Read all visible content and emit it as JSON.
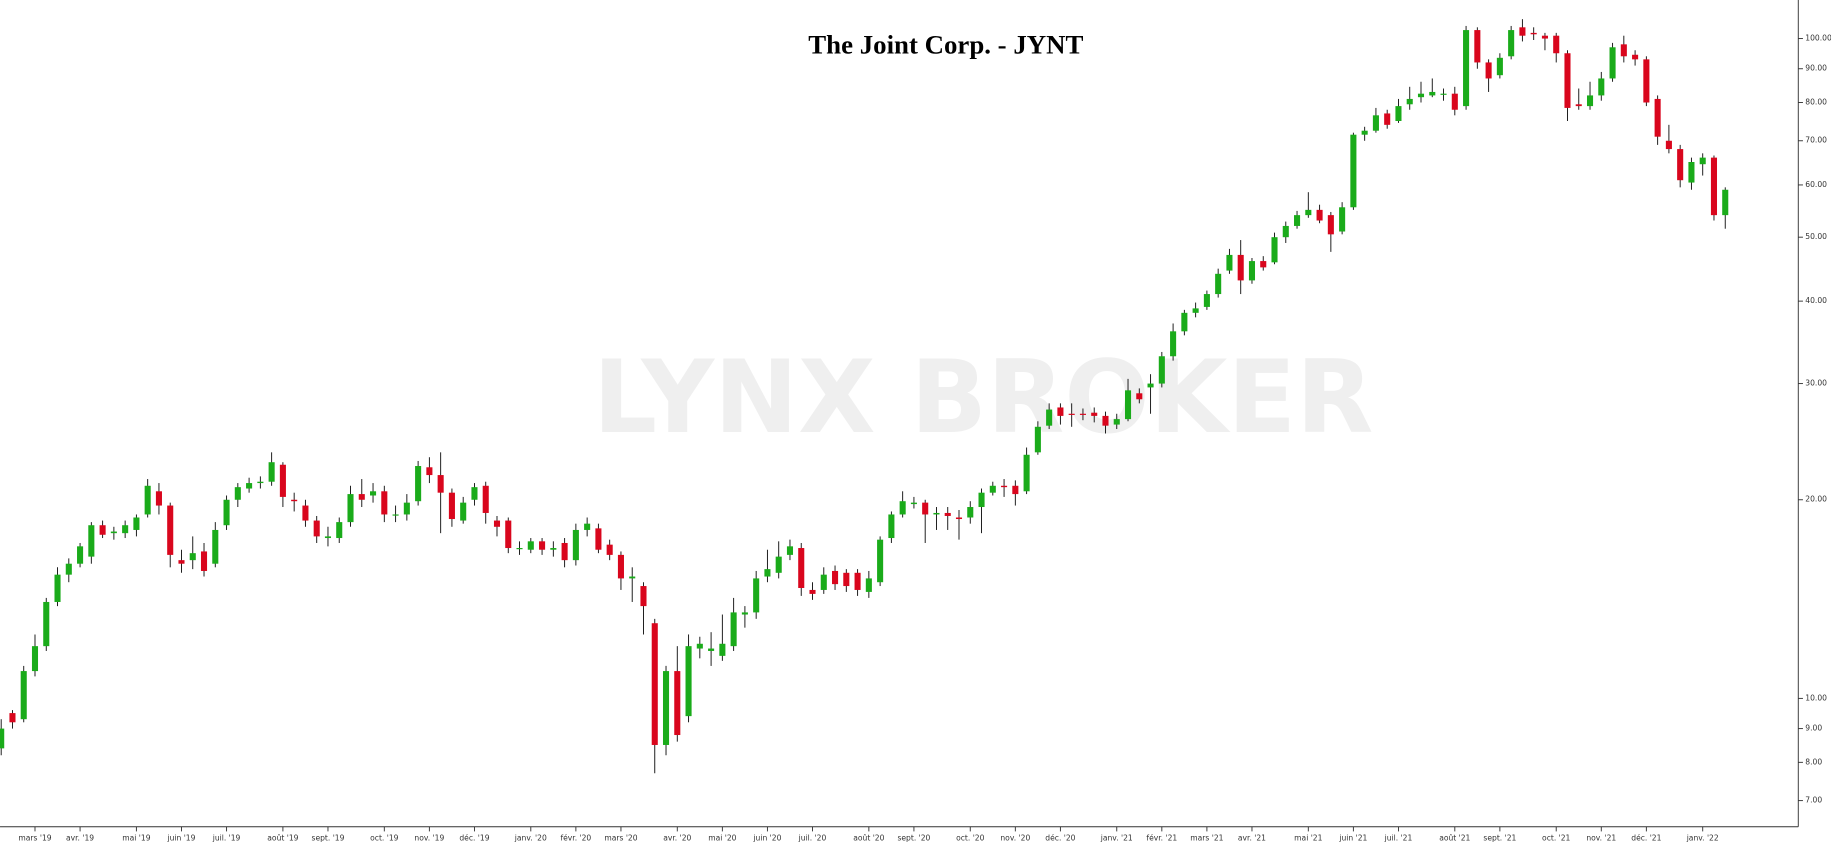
{
  "chart_data": {
    "type": "candlestick",
    "title": "The Joint Corp. - JYNT",
    "watermark": "LYNX BROKER",
    "log_scale": true,
    "grid": false,
    "up_color": "#1aab1a",
    "down_color": "#d9061d",
    "ylim": [
      6.39,
      114.4
    ],
    "yticks": [
      {
        "value": 7,
        "label": "7.00"
      },
      {
        "value": 8,
        "label": "8.00"
      },
      {
        "value": 9,
        "label": "9.00"
      },
      {
        "value": 10,
        "label": "10.00"
      },
      {
        "value": 20,
        "label": "20.00"
      },
      {
        "value": 30,
        "label": "30.00"
      },
      {
        "value": 40,
        "label": "40.00"
      },
      {
        "value": 50,
        "label": "50.00"
      },
      {
        "value": 60,
        "label": "60.00"
      },
      {
        "value": 70,
        "label": "70.00"
      },
      {
        "value": 80,
        "label": "80.00"
      },
      {
        "value": 90,
        "label": "90.00"
      },
      {
        "value": 100,
        "label": "100.00"
      }
    ],
    "categories": [
      null,
      null,
      null,
      "mars '19",
      null,
      null,
      null,
      "avr. '19",
      null,
      null,
      null,
      null,
      "mai '19",
      null,
      null,
      null,
      "juin '19",
      null,
      null,
      null,
      "juil. '19",
      null,
      null,
      null,
      null,
      "août '19",
      null,
      null,
      null,
      "sept. '19",
      null,
      null,
      null,
      null,
      "oct. '19",
      null,
      null,
      null,
      "nov. '19",
      null,
      null,
      null,
      "déc. '19",
      null,
      null,
      null,
      null,
      "janv. '20",
      null,
      null,
      null,
      "févr. '20",
      null,
      null,
      null,
      "mars '20",
      null,
      null,
      null,
      null,
      "avr. '20",
      null,
      null,
      null,
      "mai '20",
      null,
      null,
      null,
      "juin '20",
      null,
      null,
      null,
      "juil. '20",
      null,
      null,
      null,
      null,
      "août '20",
      null,
      null,
      null,
      "sept. '20",
      null,
      null,
      null,
      null,
      "oct. '20",
      null,
      null,
      null,
      "nov. '20",
      null,
      null,
      null,
      "déc. '20",
      null,
      null,
      null,
      null,
      "janv. '21",
      null,
      null,
      null,
      "févr. '21",
      null,
      null,
      null,
      "mars '21",
      null,
      null,
      null,
      "avr. '21",
      null,
      null,
      null,
      null,
      "mai '21",
      null,
      null,
      null,
      "juin '21",
      null,
      null,
      null,
      "juil. '21",
      null,
      null,
      null,
      null,
      "août '21",
      null,
      null,
      null,
      "sept. '21",
      null,
      null,
      null,
      null,
      "oct. '21",
      null,
      null,
      null,
      "nov. '21",
      null,
      null,
      null,
      "déc. '21",
      null,
      null,
      null,
      null,
      "janv. '22",
      null,
      null
    ],
    "open": [
      8.4,
      9.5,
      9.3,
      11.0,
      12.0,
      14.0,
      15.4,
      16.0,
      16.4,
      18.3,
      17.8,
      17.8,
      18.0,
      19.0,
      20.6,
      19.6,
      16.2,
      16.2,
      16.7,
      16.0,
      18.3,
      20.0,
      20.8,
      21.2,
      21.3,
      22.6,
      20.0,
      19.6,
      18.6,
      17.5,
      17.5,
      18.5,
      20.4,
      20.3,
      20.6,
      19.0,
      19.0,
      19.9,
      22.4,
      21.8,
      20.5,
      18.6,
      20.0,
      21.0,
      18.6,
      18.6,
      16.9,
      16.8,
      17.3,
      16.8,
      17.2,
      16.2,
      18.0,
      18.1,
      17.1,
      16.5,
      15.2,
      14.8,
      13.0,
      8.5,
      11.0,
      9.4,
      11.9,
      11.8,
      11.6,
      12.0,
      13.4,
      13.5,
      15.3,
      15.5,
      16.5,
      16.9,
      14.6,
      14.6,
      15.6,
      15.5,
      15.5,
      14.5,
      15.0,
      17.5,
      19.0,
      19.7,
      19.8,
      19.0,
      19.1,
      18.8,
      18.8,
      19.5,
      20.5,
      21.0,
      21.0,
      20.6,
      23.6,
      25.9,
      27.6,
      27.0,
      27.0,
      27.1,
      26.8,
      26.0,
      26.5,
      29.0,
      29.6,
      30.0,
      33.0,
      36.0,
      38.4,
      39.2,
      41.0,
      44.5,
      47.0,
      43.0,
      46.0,
      45.8,
      50.0,
      52.0,
      54.0,
      55.0,
      54.0,
      51.0,
      55.5,
      71.5,
      72.5,
      77.0,
      75.0,
      79.5,
      81.5,
      82.0,
      82.5,
      82.5,
      79.0,
      103.0,
      92.0,
      88.0,
      94.0,
      104.0,
      102.0,
      101.0,
      101.0,
      95.0,
      79.5,
      79.0,
      82.0,
      87.0,
      98.0,
      94.5,
      93.0,
      81.0,
      70.0,
      68.0,
      60.5,
      64.5,
      66.0,
      54.0
    ],
    "high": [
      9.3,
      9.6,
      11.2,
      12.5,
      14.2,
      15.8,
      16.3,
      17.2,
      18.5,
      18.6,
      18.2,
      18.6,
      19.0,
      21.5,
      21.2,
      19.8,
      16.8,
      17.6,
      17.2,
      18.5,
      20.3,
      21.2,
      21.6,
      21.7,
      23.6,
      22.8,
      20.5,
      20.0,
      18.9,
      18.2,
      18.8,
      21.0,
      21.5,
      21.2,
      21.0,
      19.6,
      20.4,
      22.9,
      23.2,
      23.6,
      20.8,
      20.2,
      21.2,
      21.3,
      18.9,
      18.8,
      17.3,
      17.5,
      17.5,
      17.3,
      17.5,
      18.4,
      18.8,
      18.4,
      17.4,
      16.7,
      15.8,
      15.0,
      13.2,
      11.2,
      12.0,
      12.5,
      12.4,
      12.6,
      13.4,
      14.2,
      13.8,
      15.6,
      16.8,
      17.3,
      17.4,
      17.2,
      15.0,
      15.8,
      15.9,
      15.7,
      15.7,
      15.6,
      17.6,
      19.2,
      20.6,
      20.2,
      20.0,
      19.5,
      19.5,
      19.3,
      19.9,
      20.8,
      21.3,
      21.5,
      21.4,
      24.0,
      26.3,
      28.0,
      28.0,
      28.0,
      27.5,
      27.6,
      27.2,
      27.0,
      30.5,
      29.5,
      31.0,
      33.5,
      37.0,
      38.8,
      39.8,
      41.5,
      44.8,
      48.0,
      49.5,
      46.5,
      46.8,
      50.8,
      52.8,
      54.8,
      58.5,
      56.0,
      54.6,
      56.5,
      72.0,
      73.5,
      78.5,
      78.0,
      81.0,
      84.5,
      86.0,
      87.0,
      84.0,
      84.5,
      104.5,
      104.0,
      93.0,
      95.0,
      104.5,
      107.0,
      104.0,
      102.0,
      102.0,
      96.0,
      84.0,
      86.0,
      89.0,
      98.5,
      101.0,
      96.0,
      94.0,
      82.0,
      74.0,
      69.0,
      66.0,
      67.0,
      66.5,
      59.5
    ],
    "low": [
      8.2,
      9.0,
      9.2,
      10.8,
      11.8,
      13.8,
      15.0,
      15.8,
      16.0,
      17.5,
      17.4,
      17.5,
      17.6,
      18.8,
      19.0,
      15.8,
      15.5,
      15.7,
      15.3,
      15.8,
      18.0,
      19.5,
      20.5,
      20.8,
      21.0,
      19.5,
      19.2,
      18.2,
      17.2,
      17.0,
      17.2,
      18.2,
      19.5,
      19.8,
      18.5,
      18.5,
      18.6,
      19.6,
      21.2,
      17.8,
      18.2,
      18.4,
      19.6,
      18.4,
      17.6,
      16.6,
      16.5,
      16.6,
      16.5,
      16.4,
      15.8,
      15.9,
      17.6,
      16.6,
      16.2,
      14.6,
      14.0,
      12.5,
      7.7,
      8.2,
      8.6,
      9.2,
      11.5,
      11.2,
      11.4,
      11.8,
      12.8,
      13.2,
      15.0,
      15.2,
      16.2,
      14.3,
      14.1,
      14.4,
      14.6,
      14.5,
      14.3,
      14.2,
      14.8,
      17.2,
      18.8,
      19.4,
      17.2,
      18.0,
      18.0,
      17.4,
      18.4,
      17.8,
      20.3,
      20.2,
      19.6,
      20.4,
      23.4,
      25.6,
      26.0,
      25.8,
      26.4,
      26.2,
      25.2,
      25.6,
      26.3,
      28.0,
      27.0,
      29.6,
      32.5,
      35.5,
      37.8,
      38.8,
      40.5,
      44.0,
      41.0,
      42.5,
      44.5,
      45.5,
      49.0,
      51.5,
      53.5,
      52.5,
      47.5,
      50.5,
      55.0,
      70.0,
      72.0,
      73.0,
      74.5,
      78.0,
      80.0,
      81.5,
      80.5,
      76.5,
      78.0,
      90.0,
      83.0,
      87.0,
      93.0,
      99.0,
      99.5,
      96.0,
      92.0,
      75.0,
      78.0,
      78.0,
      80.5,
      86.0,
      92.0,
      91.0,
      79.0,
      69.0,
      67.0,
      59.5,
      59.0,
      62.0,
      53.0,
      51.5
    ],
    "close": [
      9.0,
      9.2,
      11.0,
      12.0,
      14.0,
      15.4,
      16.0,
      17.0,
      18.3,
      17.7,
      17.9,
      18.3,
      18.8,
      21.0,
      19.6,
      16.5,
      16.0,
      16.6,
      15.6,
      18.0,
      20.0,
      20.9,
      21.2,
      21.3,
      22.8,
      20.2,
      19.9,
      18.6,
      17.6,
      17.6,
      18.5,
      20.4,
      20.0,
      20.6,
      19.0,
      19.0,
      19.8,
      22.5,
      21.8,
      20.5,
      18.7,
      19.8,
      20.9,
      19.1,
      18.2,
      16.9,
      16.9,
      17.3,
      16.8,
      16.9,
      16.2,
      18.0,
      18.4,
      16.8,
      16.5,
      15.2,
      15.3,
      13.8,
      8.5,
      11.0,
      8.8,
      12.0,
      12.1,
      11.9,
      12.1,
      13.5,
      13.5,
      15.2,
      15.7,
      16.4,
      17.0,
      14.7,
      14.4,
      15.4,
      14.9,
      14.8,
      14.6,
      15.2,
      17.4,
      19.0,
      19.9,
      19.8,
      19.0,
      19.1,
      18.9,
      18.7,
      19.5,
      20.5,
      21.0,
      20.9,
      20.4,
      23.4,
      25.8,
      27.4,
      26.8,
      26.9,
      26.9,
      26.8,
      25.9,
      26.5,
      29.3,
      28.4,
      30.0,
      33.0,
      36.0,
      38.4,
      39.0,
      41.0,
      44.0,
      47.0,
      43.0,
      46.0,
      45.0,
      50.0,
      52.0,
      54.0,
      55.0,
      53.0,
      50.5,
      55.5,
      71.5,
      72.5,
      76.5,
      74.0,
      79.0,
      81.0,
      82.5,
      83.0,
      82.5,
      78.0,
      103.0,
      92.0,
      87.0,
      93.5,
      103.0,
      101.0,
      101.5,
      100.0,
      95.0,
      78.5,
      79.0,
      82.0,
      87.0,
      97.0,
      94.0,
      93.0,
      80.0,
      71.0,
      68.0,
      61.0,
      65.0,
      66.0,
      54.0,
      59.0
    ]
  }
}
